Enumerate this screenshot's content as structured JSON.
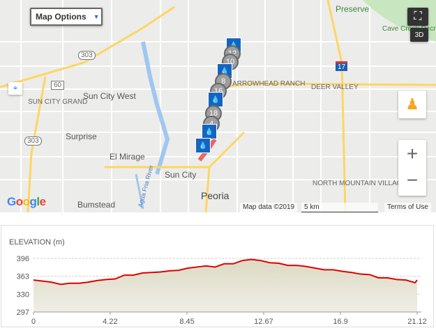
{
  "map": {
    "options_button": "Map Options",
    "labels": {
      "preserve": "Preserve",
      "cave_creek": "Cave Creek Recreation Area",
      "sun_city_west": "Sun City West",
      "sun_city_grand": "SUN CITY GRAND",
      "surprise": "Surprise",
      "el_mirage": "El Mirage",
      "sun_city": "Sun City",
      "peoria": "Peoria",
      "bumstead": "Bumstead",
      "arrowhead": "ARROWHEAD RANCH",
      "deer_valley": "DEER VALLEY",
      "north_mountain": "NORTH MOUNTAIN VILLAGE",
      "agua_fria": "Agua Fria River",
      "hwy_303": "303",
      "hwy_60": "60",
      "hwy_303b": "303",
      "i17": "17"
    },
    "markers": [
      "12",
      "10",
      "8",
      "16",
      "18",
      "4"
    ],
    "fullscreen_icon": "fullscreen-icon",
    "btn_3d": "3D",
    "zoom_in": "+",
    "zoom_out": "−",
    "attribution": "Map data ©2019",
    "scale": "5 km",
    "terms": "Terms of Use",
    "logo": "Google",
    "colors": {
      "route": "#e53935",
      "marker": "#1565c0",
      "highway": "#fdd663"
    }
  },
  "elevation": {
    "title": "ELEVATION (m)",
    "chart_data": {
      "type": "area",
      "title": "ELEVATION (m)",
      "xlim": [
        0,
        21.12
      ],
      "ylim": [
        297,
        396
      ],
      "x_ticks": [
        "0",
        "4.22",
        "8.45",
        "12.67",
        "16.9",
        "21.12"
      ],
      "y_ticks": [
        "396",
        "363",
        "330",
        "297"
      ],
      "grid": true,
      "line_color": "#e00000",
      "fill_color": "#dedcc8",
      "x": [
        0,
        0.5,
        1,
        1.5,
        2,
        2.5,
        3,
        3.5,
        4,
        4.5,
        5,
        5.5,
        6,
        6.5,
        7,
        7.5,
        8,
        8.5,
        9,
        9.5,
        10,
        10.5,
        11,
        11.5,
        12,
        12.5,
        13,
        13.5,
        14,
        14.5,
        15,
        15.5,
        16,
        16.5,
        17,
        17.5,
        18,
        18.5,
        19,
        19.5,
        20,
        20.5,
        21,
        21.12
      ],
      "y": [
        356,
        354,
        352,
        348,
        350,
        350,
        352,
        355,
        357,
        358,
        365,
        365,
        369,
        370,
        371,
        373,
        374,
        378,
        380,
        382,
        380,
        386,
        386,
        392,
        394,
        392,
        388,
        387,
        383,
        383,
        381,
        378,
        375,
        375,
        372,
        370,
        367,
        366,
        360,
        360,
        357,
        356,
        351,
        356
      ]
    }
  }
}
